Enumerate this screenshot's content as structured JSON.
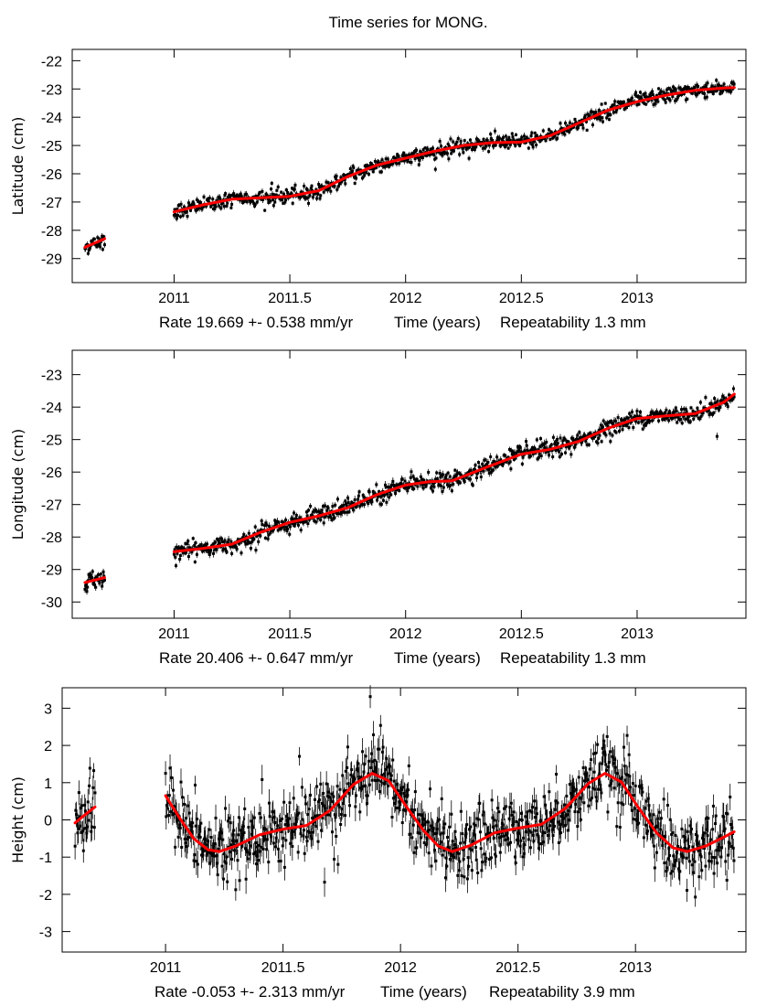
{
  "title": "Time series for MONG.",
  "chart_data": [
    {
      "type": "scatter",
      "title": "Time series for MONG.",
      "ylabel": "Latitude (cm)",
      "xlabel": "Time (years)",
      "rate_text": "Rate 19.669 +- 0.538 mm/yr",
      "repeatability_text": "Repeatability 1.3 mm",
      "xlim": [
        2010.56,
        2013.47
      ],
      "ylim": [
        -29.85,
        -21.6
      ],
      "xticks": [
        2011,
        2011.5,
        2012,
        2012.5,
        2013
      ],
      "xtick_labels": [
        "2011",
        "2011.5",
        "2012",
        "2012.5",
        "2013"
      ],
      "yticks": [
        -22,
        -23,
        -24,
        -25,
        -26,
        -27,
        -28,
        -29
      ],
      "ytick_labels": [
        "-22",
        "-23",
        "-24",
        "-25",
        "-26",
        "-27",
        "-28",
        "-29"
      ],
      "grid": false,
      "noise_cm": 0.13,
      "segments": [
        [
          2010.615,
          2010.7
        ],
        [
          2011.0,
          2013.42
        ]
      ],
      "series": [
        {
          "name": "daily positions",
          "color": "#000000",
          "style": "points-with-errorbars"
        },
        {
          "name": "model fit",
          "color": "#ff0000",
          "style": "line",
          "x": [
            2010.615,
            2010.7,
            null,
            2011.0,
            2011.125,
            2011.25,
            2011.375,
            2011.5,
            2011.625,
            2011.75,
            2011.875,
            2012.0,
            2012.125,
            2012.25,
            2012.375,
            2012.5,
            2012.625,
            2012.75,
            2012.875,
            2013.0,
            2013.125,
            2013.25,
            2013.375,
            2013.42
          ],
          "y": [
            -28.6,
            -28.3,
            null,
            -27.35,
            -27.1,
            -26.9,
            -26.85,
            -26.8,
            -26.6,
            -26.1,
            -25.7,
            -25.45,
            -25.2,
            -25.0,
            -24.9,
            -24.88,
            -24.65,
            -24.2,
            -23.75,
            -23.45,
            -23.22,
            -23.05,
            -22.97,
            -22.95
          ]
        }
      ]
    },
    {
      "type": "scatter",
      "ylabel": "Longitude (cm)",
      "xlabel": "Time (years)",
      "rate_text": "Rate 20.406 +- 0.647 mm/yr",
      "repeatability_text": "Repeatability 1.3 mm",
      "xlim": [
        2010.56,
        2013.47
      ],
      "ylim": [
        -30.5,
        -22.25
      ],
      "xticks": [
        2011,
        2011.5,
        2012,
        2012.5,
        2013
      ],
      "xtick_labels": [
        "2011",
        "2011.5",
        "2012",
        "2012.5",
        "2013"
      ],
      "yticks": [
        -23,
        -24,
        -25,
        -26,
        -27,
        -28,
        -29,
        -30
      ],
      "ytick_labels": [
        "-23",
        "-24",
        "-25",
        "-26",
        "-27",
        "-28",
        "-29",
        "-30"
      ],
      "grid": false,
      "noise_cm": 0.13,
      "segments": [
        [
          2010.615,
          2010.7
        ],
        [
          2011.0,
          2013.42
        ]
      ],
      "series": [
        {
          "name": "daily positions",
          "color": "#000000",
          "style": "points-with-errorbars"
        },
        {
          "name": "model fit",
          "color": "#ff0000",
          "style": "line",
          "x": [
            2010.615,
            2010.7,
            null,
            2011.0,
            2011.125,
            2011.25,
            2011.375,
            2011.5,
            2011.625,
            2011.75,
            2011.875,
            2012.0,
            2012.1,
            2012.2,
            2012.35,
            2012.5,
            2012.625,
            2012.75,
            2012.875,
            2013.0,
            2013.125,
            2013.25,
            2013.375,
            2013.42
          ],
          "y": [
            -29.4,
            -29.25,
            null,
            -28.45,
            -28.35,
            -28.22,
            -27.85,
            -27.55,
            -27.35,
            -27.1,
            -26.7,
            -26.4,
            -26.3,
            -26.27,
            -25.85,
            -25.45,
            -25.3,
            -25.05,
            -24.65,
            -24.35,
            -24.27,
            -24.2,
            -23.85,
            -23.6
          ]
        }
      ]
    },
    {
      "type": "scatter",
      "ylabel": "Height (cm)",
      "xlabel": "Time (years)",
      "rate_text": "Rate -0.053 +- 2.313 mm/yr",
      "repeatability_text": "Repeatability 3.9 mm",
      "xlim": [
        2010.56,
        2013.47
      ],
      "ylim": [
        -3.55,
        3.55
      ],
      "xticks": [
        2011,
        2011.5,
        2012,
        2012.5,
        2013
      ],
      "xtick_labels": [
        "2011",
        "2011.5",
        "2012",
        "2012.5",
        "2013"
      ],
      "yticks": [
        3,
        2,
        1,
        0,
        -1,
        -2,
        -3
      ],
      "ytick_labels": [
        "3",
        "2",
        "1",
        "0",
        "-1",
        "-2",
        "-3"
      ],
      "grid": false,
      "noise_cm": 0.42,
      "segments": [
        [
          2010.615,
          2010.7
        ],
        [
          2011.0,
          2013.42
        ]
      ],
      "series": [
        {
          "name": "daily positions",
          "color": "#000000",
          "style": "points-with-errorbars"
        },
        {
          "name": "model fit",
          "color": "#ff0000",
          "style": "line",
          "x": [
            2010.615,
            2010.65,
            2010.7,
            null,
            2011.0,
            2011.06,
            2011.12,
            2011.18,
            2011.23,
            2011.3,
            2011.4,
            2011.5,
            2011.6,
            2011.7,
            2011.8,
            2011.88,
            2011.95,
            2012.02,
            2012.1,
            2012.16,
            2012.22,
            2012.3,
            2012.4,
            2012.5,
            2012.6,
            2012.7,
            2012.8,
            2012.87,
            2012.94,
            2013.01,
            2013.09,
            2013.16,
            2013.22,
            2013.3,
            2013.38,
            2013.42
          ],
          "y": [
            -0.08,
            0.1,
            0.35,
            null,
            0.65,
            0.05,
            -0.5,
            -0.8,
            -0.85,
            -0.7,
            -0.4,
            -0.25,
            -0.15,
            0.25,
            0.95,
            1.25,
            1.05,
            0.4,
            -0.3,
            -0.7,
            -0.85,
            -0.68,
            -0.35,
            -0.22,
            -0.12,
            0.3,
            0.98,
            1.25,
            1.02,
            0.35,
            -0.35,
            -0.75,
            -0.85,
            -0.7,
            -0.45,
            -0.32
          ]
        }
      ]
    }
  ]
}
